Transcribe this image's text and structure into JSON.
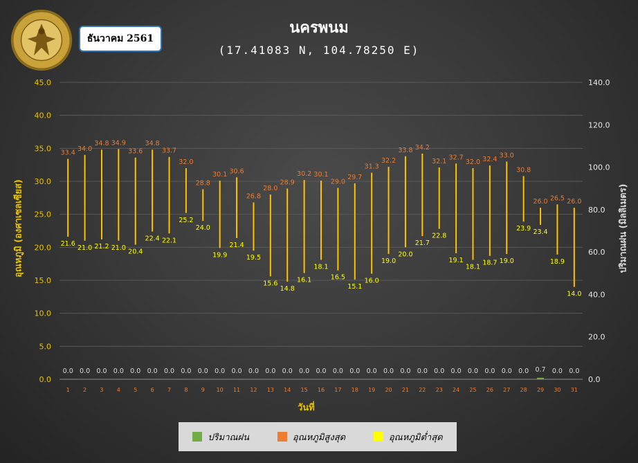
{
  "header": {
    "title": "นครพนม",
    "subtitle": "(17.41083 N, 104.78250 E)",
    "month_label": "ธันวาคม 2561",
    "logo_text": "กรมอุตุนิยมวิทยา METEOROLOGICAL DEPARTMENT"
  },
  "axes": {
    "left_label": "อุณหภูมิ (องศาเซลเซียส)",
    "right_label": "ปริมาณฝน (มิลลิเมตร)",
    "x_label": "วันที่"
  },
  "legend": {
    "rain": "ปริมาณฝน",
    "max": "อุณหภูมิสูงสุด",
    "min": "อุณหภูมิต่ำสุด"
  },
  "colors": {
    "rain": "#70ad47",
    "max": "#ed7d31",
    "min": "#ffff00",
    "bar": "#ffc000",
    "left_tick": "#e8c300",
    "grid": "#595959"
  },
  "chart_data": {
    "type": "bar",
    "x": [
      1,
      2,
      3,
      4,
      5,
      6,
      7,
      8,
      9,
      10,
      11,
      12,
      13,
      14,
      15,
      16,
      17,
      18,
      19,
      20,
      21,
      22,
      23,
      24,
      25,
      26,
      27,
      28,
      29,
      30,
      31
    ],
    "series": [
      {
        "name": "อุณหภูมิสูงสุด",
        "values": [
          33.4,
          34.0,
          34.8,
          34.9,
          33.6,
          34.8,
          33.7,
          32.0,
          28.8,
          30.1,
          30.6,
          26.8,
          28.0,
          28.9,
          30.2,
          30.1,
          29.0,
          29.7,
          31.3,
          32.2,
          33.8,
          34.2,
          32.1,
          32.7,
          32.0,
          32.4,
          33.0,
          30.8,
          26.0,
          26.5,
          26.0
        ]
      },
      {
        "name": "อุณหภูมิต่ำสุด",
        "values": [
          21.6,
          21.0,
          21.2,
          21.0,
          20.4,
          22.4,
          22.1,
          25.2,
          24.0,
          19.9,
          21.4,
          19.5,
          15.6,
          14.8,
          16.1,
          18.1,
          16.5,
          15.1,
          16.0,
          19.0,
          20.0,
          21.7,
          22.8,
          19.1,
          18.1,
          18.7,
          19.0,
          23.9,
          23.4,
          18.9,
          14.0
        ]
      },
      {
        "name": "ปริมาณฝน",
        "values": [
          0.0,
          0.0,
          0.0,
          0.0,
          0.0,
          0.0,
          0.0,
          0.0,
          0.0,
          0.0,
          0.0,
          0.0,
          0.0,
          0.0,
          0.0,
          0.0,
          0.0,
          0.0,
          0.0,
          0.0,
          0.0,
          0.0,
          0.0,
          0.0,
          0.0,
          0.0,
          0.0,
          0.0,
          0.7,
          0.0,
          0.0
        ]
      }
    ],
    "ylim_left": [
      0,
      45
    ],
    "yticks_left": [
      "0.0",
      "5.0",
      "10.0",
      "15.0",
      "20.0",
      "25.0",
      "30.0",
      "35.0",
      "40.0",
      "45.0"
    ],
    "ylim_right": [
      0,
      140
    ],
    "yticks_right": [
      "0.0",
      "20.0",
      "40.0",
      "60.0",
      "80.0",
      "100.0",
      "120.0",
      "140.0"
    ],
    "grid": true,
    "legend_position": "bottom"
  }
}
